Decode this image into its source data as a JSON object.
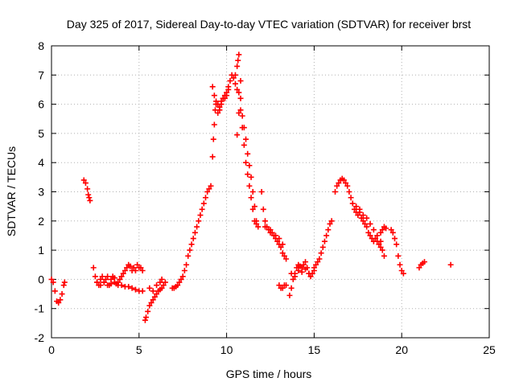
{
  "chart_data": {
    "type": "scatter",
    "title": "Day 325 of 2017, Sidereal Day-to-day VTEC variation (SDTVAR) for receiver brst",
    "xlabel": "GPS time / hours",
    "ylabel": "SDTVAR / TECUs",
    "xlim": [
      0,
      25
    ],
    "ylim": [
      -2,
      8
    ],
    "xticks": [
      0,
      5,
      10,
      15,
      20,
      25
    ],
    "yticks": [
      -2,
      -1,
      0,
      1,
      2,
      3,
      4,
      5,
      6,
      7,
      8
    ],
    "grid": true,
    "marker": "+",
    "color": "#ff0000",
    "series": [
      {
        "name": "SDTVAR",
        "x": [
          0.0,
          0.1,
          0.2,
          0.3,
          0.4,
          0.5,
          0.6,
          0.7,
          0.75
        ],
        "y": [
          0.0,
          -0.1,
          -0.4,
          -0.75,
          -0.8,
          -0.7,
          -0.5,
          -0.2,
          -0.1
        ]
      },
      {
        "name": "SDTVAR",
        "x": [
          1.85,
          1.95,
          2.05,
          2.1,
          2.15,
          2.2
        ],
        "y": [
          3.4,
          3.3,
          3.1,
          2.9,
          2.8,
          2.7
        ]
      },
      {
        "name": "SDTVAR",
        "x": [
          2.4,
          2.5,
          2.6,
          2.7,
          2.8,
          2.9,
          3.0,
          3.1,
          3.2,
          3.3,
          3.4,
          3.5,
          3.6,
          3.7,
          3.8,
          3.9,
          4.0,
          4.1,
          4.2,
          4.3,
          4.4,
          4.5,
          4.6,
          4.7,
          4.8,
          4.9,
          5.0,
          5.1,
          5.2
        ],
        "y": [
          0.4,
          0.1,
          -0.1,
          -0.2,
          0.0,
          0.1,
          -0.1,
          0.0,
          0.1,
          -0.2,
          0.0,
          0.1,
          0.05,
          -0.15,
          -0.1,
          0.0,
          0.1,
          0.2,
          0.3,
          0.4,
          0.5,
          0.45,
          0.3,
          0.4,
          0.3,
          0.5,
          0.4,
          0.4,
          0.3
        ]
      },
      {
        "name": "SDTVAR",
        "x": [
          2.6,
          2.8,
          3.0,
          3.2,
          3.4,
          3.6,
          3.8,
          4.0,
          4.2,
          4.4,
          4.6,
          4.8,
          5.0,
          5.2
        ],
        "y": [
          -0.1,
          -0.2,
          -0.1,
          -0.2,
          -0.15,
          -0.1,
          -0.2,
          -0.2,
          -0.25,
          -0.25,
          -0.3,
          -0.35,
          -0.4,
          -0.4
        ]
      },
      {
        "name": "SDTVAR",
        "x": [
          5.35,
          5.4,
          5.5,
          5.6,
          5.7,
          5.8,
          5.9,
          6.0,
          6.1,
          6.2,
          6.3,
          6.4,
          6.5
        ],
        "y": [
          -1.4,
          -1.3,
          -1.1,
          -0.9,
          -0.8,
          -0.7,
          -0.6,
          -0.5,
          -0.4,
          -0.35,
          -0.3,
          -0.2,
          -0.1
        ]
      },
      {
        "name": "SDTVAR",
        "x": [
          5.6,
          5.8,
          6.0,
          6.2,
          6.3
        ],
        "y": [
          -0.3,
          -0.4,
          -0.2,
          -0.1,
          0.0
        ]
      },
      {
        "name": "SDTVAR",
        "x": [
          6.9,
          7.0,
          7.1,
          7.2,
          7.3,
          7.4,
          7.5,
          7.6,
          7.7,
          7.8,
          7.9,
          8.0,
          8.1,
          8.2,
          8.3,
          8.4,
          8.5,
          8.6,
          8.7,
          8.8,
          8.9,
          9.0,
          9.1
        ],
        "y": [
          -0.3,
          -0.3,
          -0.25,
          -0.2,
          -0.1,
          0.0,
          0.1,
          0.3,
          0.5,
          0.8,
          1.0,
          1.2,
          1.4,
          1.6,
          1.8,
          2.0,
          2.2,
          2.4,
          2.6,
          2.8,
          3.0,
          3.1,
          3.2
        ]
      },
      {
        "name": "SDTVAR",
        "x": [
          9.2,
          9.25,
          9.3,
          9.35,
          9.4,
          9.5,
          9.6,
          9.7,
          9.8,
          9.9,
          10.0,
          10.1,
          10.2,
          10.3,
          10.4,
          10.5,
          10.6,
          10.7,
          10.8
        ],
        "y": [
          4.2,
          4.8,
          5.3,
          5.8,
          6.0,
          5.7,
          5.9,
          6.1,
          6.2,
          6.2,
          6.3,
          6.6,
          6.8,
          7.0,
          6.9,
          6.7,
          6.5,
          6.4,
          6.2
        ]
      },
      {
        "name": "SDTVAR",
        "x": [
          9.2,
          9.3,
          9.4,
          9.5,
          9.6,
          9.7,
          9.8,
          9.9,
          10.0,
          10.1
        ],
        "y": [
          6.6,
          6.3,
          6.1,
          6.0,
          5.8,
          6.0,
          6.2,
          6.3,
          6.4,
          6.5
        ]
      },
      {
        "name": "SDTVAR",
        "x": [
          10.5,
          10.6,
          10.65,
          10.7,
          10.8
        ],
        "y": [
          7.0,
          7.3,
          7.5,
          7.7,
          6.8
        ]
      },
      {
        "name": "SDTVAR",
        "x": [
          10.6,
          10.7,
          10.8,
          10.9,
          11.0,
          11.1,
          11.2,
          11.3,
          11.4,
          11.5,
          11.6,
          11.7,
          11.8
        ],
        "y": [
          4.95,
          5.7,
          5.8,
          5.6,
          5.2,
          4.8,
          4.3,
          3.9,
          3.5,
          3.0,
          2.5,
          2.0,
          1.8
        ]
      },
      {
        "name": "SDTVAR",
        "x": [
          10.9,
          11.0,
          11.1,
          11.2,
          11.3,
          11.4,
          11.5,
          11.6,
          11.7
        ],
        "y": [
          5.2,
          4.6,
          4.0,
          3.6,
          3.2,
          2.8,
          2.4,
          2.0,
          1.9
        ]
      },
      {
        "name": "SDTVAR",
        "x": [
          12.0,
          12.1,
          12.2,
          12.3,
          12.4,
          12.5,
          12.6,
          12.7,
          12.8,
          12.9,
          13.0,
          13.1,
          13.2,
          13.3,
          13.4
        ],
        "y": [
          3.0,
          2.4,
          2.0,
          1.8,
          1.7,
          1.6,
          1.6,
          1.5,
          1.4,
          1.3,
          1.2,
          1.1,
          0.9,
          0.8,
          0.7
        ]
      },
      {
        "name": "SDTVAR",
        "x": [
          12.2,
          12.5,
          12.8,
          13.0,
          13.2
        ],
        "y": [
          1.8,
          1.7,
          1.5,
          1.4,
          1.2
        ]
      },
      {
        "name": "SDTVAR",
        "x": [
          13.0,
          13.1,
          13.2,
          13.3,
          13.4
        ],
        "y": [
          -0.2,
          -0.3,
          -0.3,
          -0.2,
          -0.2
        ]
      },
      {
        "name": "SDTVAR",
        "x": [
          13.6,
          13.7,
          13.8,
          13.9,
          14.0,
          14.1,
          14.2,
          14.3,
          14.4,
          14.5,
          14.6,
          14.7,
          14.8,
          14.9,
          15.0
        ],
        "y": [
          -0.55,
          -0.3,
          0.0,
          0.2,
          0.4,
          0.5,
          0.45,
          0.4,
          0.5,
          0.6,
          0.4,
          0.2,
          0.1,
          0.2,
          0.3
        ]
      },
      {
        "name": "SDTVAR",
        "x": [
          13.7,
          13.9,
          14.1,
          14.3,
          14.5,
          14.7
        ],
        "y": [
          0.2,
          0.1,
          0.3,
          0.25,
          0.35,
          0.2
        ]
      },
      {
        "name": "SDTVAR",
        "x": [
          15.0,
          15.1,
          15.2,
          15.3,
          15.4,
          15.5,
          15.6,
          15.7,
          15.8,
          15.9,
          16.0
        ],
        "y": [
          0.4,
          0.5,
          0.6,
          0.7,
          0.9,
          1.1,
          1.3,
          1.5,
          1.7,
          1.9,
          2.0
        ]
      },
      {
        "name": "SDTVAR",
        "x": [
          16.2,
          16.3,
          16.4,
          16.5,
          16.6,
          16.7,
          16.8,
          16.9,
          17.0,
          17.1,
          17.2,
          17.3,
          17.4,
          17.5,
          17.6,
          17.7,
          17.8,
          17.9,
          18.0,
          18.1,
          18.2,
          18.3,
          18.4,
          18.5,
          18.6,
          18.7,
          18.8,
          18.9,
          19.0
        ],
        "y": [
          3.0,
          3.2,
          3.3,
          3.4,
          3.45,
          3.4,
          3.3,
          3.2,
          3.0,
          2.8,
          2.6,
          2.4,
          2.3,
          2.2,
          2.3,
          2.1,
          2.0,
          1.9,
          1.8,
          1.6,
          1.5,
          1.4,
          1.3,
          1.4,
          1.3,
          1.2,
          1.1,
          1.0,
          0.8
        ]
      },
      {
        "name": "SDTVAR",
        "x": [
          17.4,
          17.6,
          17.8,
          18.0,
          18.2,
          18.4,
          18.6,
          18.8
        ],
        "y": [
          2.5,
          2.4,
          2.2,
          2.1,
          1.9,
          1.7,
          1.5,
          1.3
        ]
      },
      {
        "name": "SDTVAR",
        "x": [
          18.8,
          18.9,
          19.0,
          19.1
        ],
        "y": [
          1.6,
          1.7,
          1.8,
          1.75
        ]
      },
      {
        "name": "SDTVAR",
        "x": [
          19.4,
          19.5,
          19.6,
          19.7,
          19.8,
          19.9,
          20.0,
          20.1
        ],
        "y": [
          1.7,
          1.6,
          1.4,
          1.2,
          0.8,
          0.5,
          0.3,
          0.2
        ]
      },
      {
        "name": "SDTVAR",
        "x": [
          21.0,
          21.1,
          21.2,
          21.3
        ],
        "y": [
          0.4,
          0.5,
          0.55,
          0.6
        ]
      },
      {
        "name": "SDTVAR",
        "x": [
          22.8
        ],
        "y": [
          0.5
        ]
      }
    ]
  }
}
